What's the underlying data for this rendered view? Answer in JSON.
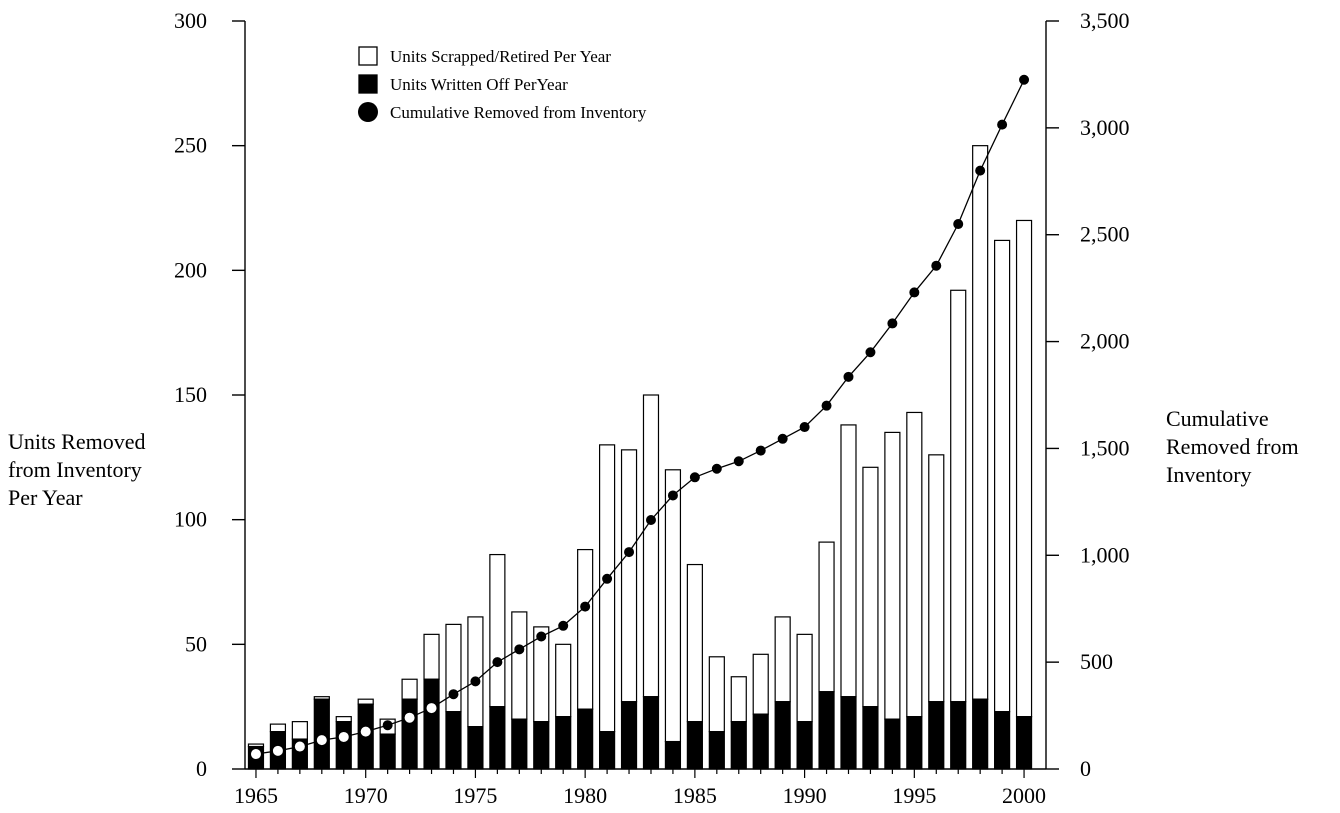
{
  "chart_data": {
    "type": "bar",
    "ylabel_left": "Units Removed\nfrom Inventory\nPer Year",
    "ylabel_right": "Cumulative\nRemoved from\nInventory",
    "xlabel": "",
    "x_ticks": [
      "1965",
      "1970",
      "1975",
      "1980",
      "1985",
      "1990",
      "1995",
      "2000"
    ],
    "y_left_ticks": [
      "0",
      "50",
      "100",
      "150",
      "200",
      "250",
      "300"
    ],
    "y_right_ticks": [
      "0",
      "500",
      "1,000",
      "1,500",
      "2,000",
      "2,500",
      "3,000",
      "3,500"
    ],
    "ylim_left": [
      0,
      300
    ],
    "ylim_right": [
      0,
      3500
    ],
    "xlim": [
      1964.5,
      2001
    ],
    "legend": {
      "placement": "top-left",
      "items": [
        {
          "label": "Units Scrapped/Retired Per Year",
          "marker": "open-square"
        },
        {
          "label": "Units Written Off PerYear",
          "marker": "filled-square"
        },
        {
          "label": "Cumulative Removed from Inventory",
          "marker": "filled-circle"
        }
      ]
    },
    "years": [
      1965,
      1966,
      1967,
      1968,
      1969,
      1970,
      1971,
      1972,
      1973,
      1974,
      1975,
      1976,
      1977,
      1978,
      1979,
      1980,
      1981,
      1982,
      1983,
      1984,
      1985,
      1986,
      1987,
      1988,
      1989,
      1990,
      1991,
      1992,
      1993,
      1994,
      1995,
      1996,
      1997,
      1998,
      1999,
      2000
    ],
    "series": [
      {
        "name": "Units Scrapped/Retired Per Year",
        "axis": "left",
        "style": "stacked-bar-open",
        "values": [
          1,
          3,
          7,
          1,
          2,
          2,
          6,
          8,
          18,
          35,
          44,
          61,
          43,
          38,
          29,
          64,
          115,
          101,
          121,
          109,
          63,
          30,
          18,
          24,
          34,
          35,
          60,
          109,
          96,
          115,
          122,
          99,
          165,
          222,
          189,
          199
        ]
      },
      {
        "name": "Units Written Off PerYear",
        "axis": "left",
        "style": "stacked-bar-filled",
        "values": [
          9,
          15,
          12,
          28,
          19,
          26,
          14,
          28,
          36,
          23,
          17,
          25,
          20,
          19,
          21,
          24,
          15,
          27,
          29,
          11,
          19,
          15,
          19,
          22,
          27,
          19,
          31,
          29,
          25,
          20,
          21,
          27,
          27,
          28,
          23,
          21
        ]
      },
      {
        "name": "Cumulative Removed from Inventory",
        "axis": "right",
        "style": "line-markers",
        "values": [
          70,
          85,
          105,
          135,
          150,
          175,
          205,
          240,
          285,
          350,
          410,
          500,
          560,
          620,
          670,
          760,
          890,
          1015,
          1165,
          1280,
          1365,
          1405,
          1440,
          1490,
          1545,
          1600,
          1700,
          1835,
          1950,
          2085,
          2230,
          2355,
          2550,
          2800,
          3015,
          3225
        ]
      }
    ]
  }
}
